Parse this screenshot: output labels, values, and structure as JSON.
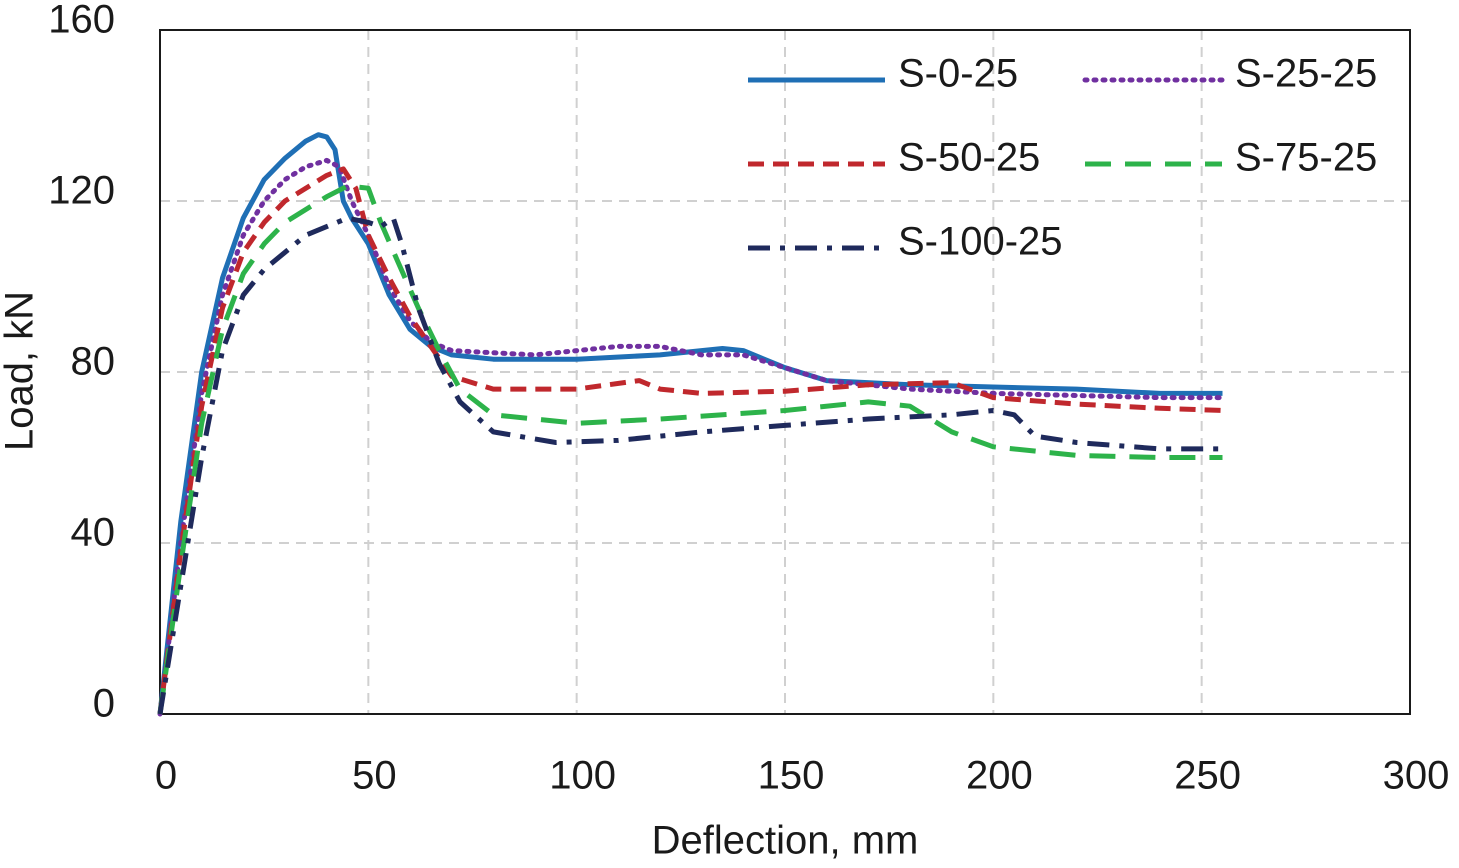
{
  "chart_data": {
    "type": "line",
    "x_label": "Deflection, mm",
    "y_label": "Load, kN",
    "xlim": [
      0,
      300
    ],
    "ylim": [
      0,
      160
    ],
    "xticks": [
      0,
      50,
      100,
      150,
      200,
      250,
      300
    ],
    "yticks": [
      0,
      40,
      80,
      120,
      160
    ],
    "grid": true,
    "legend": "upper right",
    "series": [
      {
        "name": "S-0-25",
        "color": "#1f6fb5",
        "style": "solid",
        "x": [
          0,
          5,
          10,
          15,
          20,
          25,
          30,
          35,
          38,
          40,
          42,
          44,
          46,
          50,
          55,
          60,
          65,
          70,
          80,
          100,
          120,
          135,
          140,
          150,
          160,
          180,
          200,
          220,
          240,
          255
        ],
        "values": [
          0,
          45,
          80,
          102,
          116,
          125,
          130,
          134,
          135.5,
          135,
          132,
          120,
          116,
          110,
          98,
          90,
          86,
          84,
          83,
          83,
          84,
          85.5,
          85,
          81,
          78,
          77,
          76.5,
          76,
          75,
          75
        ]
      },
      {
        "name": "S-25-25",
        "color": "#7030a0",
        "style": "dotted",
        "x": [
          0,
          5,
          10,
          15,
          20,
          25,
          30,
          35,
          40,
          43,
          46,
          50,
          55,
          60,
          65,
          70,
          90,
          110,
          120,
          130,
          140,
          150,
          160,
          180,
          200,
          220,
          240,
          255
        ],
        "values": [
          0,
          40,
          75,
          98,
          112,
          120,
          125,
          128,
          129.5,
          128,
          120,
          112,
          100,
          92,
          87,
          85,
          84,
          86,
          86,
          84,
          84,
          81,
          78,
          76,
          75,
          74.5,
          74,
          74
        ]
      },
      {
        "name": "S-50-25",
        "color": "#c0282d",
        "style": "dashed",
        "x": [
          0,
          5,
          10,
          15,
          20,
          25,
          30,
          35,
          40,
          44,
          47,
          50,
          55,
          60,
          65,
          70,
          80,
          100,
          115,
          120,
          130,
          150,
          170,
          190,
          200,
          220,
          240,
          255
        ],
        "values": [
          0,
          38,
          72,
          95,
          108,
          115,
          120,
          123,
          126,
          127.5,
          123,
          112,
          102,
          93,
          86,
          79,
          76,
          76,
          78,
          76,
          75,
          75.5,
          77,
          77.5,
          74,
          72.5,
          71.5,
          71
        ]
      },
      {
        "name": "S-75-25",
        "color": "#2db34a",
        "style": "longdash",
        "x": [
          0,
          5,
          10,
          15,
          20,
          25,
          30,
          35,
          40,
          45,
          50,
          53,
          57,
          62,
          67,
          72,
          80,
          100,
          120,
          150,
          170,
          180,
          190,
          200,
          220,
          240,
          255
        ],
        "values": [
          0,
          35,
          68,
          90,
          103,
          110,
          115,
          118,
          121,
          123.5,
          123,
          115,
          106,
          95,
          85,
          76,
          70,
          68,
          69,
          71,
          73,
          72,
          66,
          62.5,
          60.5,
          60,
          60
        ]
      },
      {
        "name": "S-100-25",
        "color": "#1f2a5c",
        "style": "dashdot",
        "x": [
          0,
          5,
          10,
          15,
          20,
          25,
          30,
          35,
          40,
          45,
          50,
          53,
          56,
          58,
          62,
          67,
          72,
          80,
          95,
          110,
          130,
          150,
          170,
          190,
          200,
          205,
          210,
          220,
          240,
          255
        ],
        "values": [
          0,
          30,
          60,
          85,
          98,
          104,
          108,
          112,
          114,
          116,
          115,
          114,
          116,
          110,
          95,
          82,
          73,
          66,
          63.5,
          64,
          66,
          67.5,
          69,
          70,
          71,
          70,
          65,
          63.5,
          62,
          62
        ]
      }
    ]
  }
}
